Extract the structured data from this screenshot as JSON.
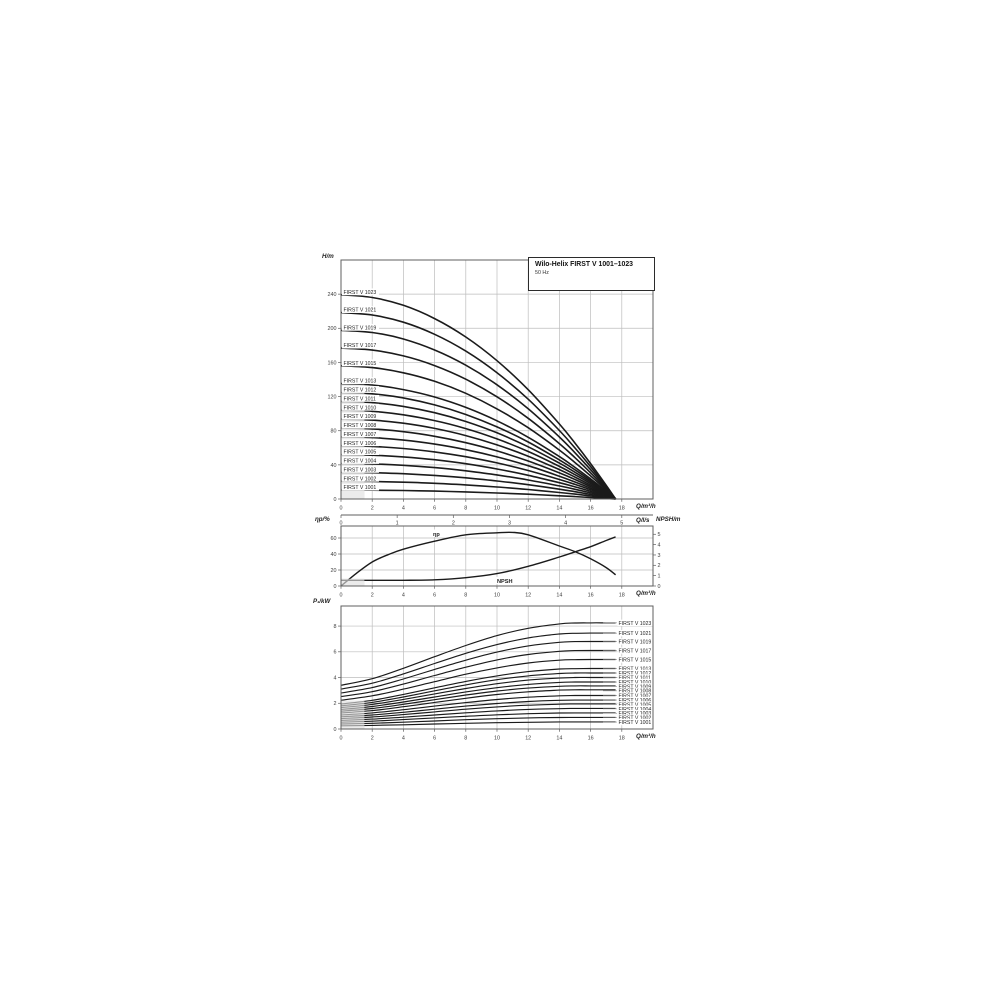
{
  "title_box": {
    "title": "Wilo-Helix FIRST V 1001–1023",
    "subtitle": "50 Hz"
  },
  "units": {
    "head": "H/m",
    "flow_m3h": "Q/m³/h",
    "flow_ls": "Q/l/s",
    "eta": "ηp/%",
    "npsh": "NPSH/m",
    "power": "P₁/kW"
  },
  "colors": {
    "curve": "#1b1b1b",
    "grid": "#bdbdbd",
    "frame": "#5f5f5f",
    "tick_text": "#3c3c3c",
    "leader": "#8c8c8c",
    "wash_under": "#d2d2d2",
    "wash_over": "rgba(255,255,255,0.55)"
  },
  "chart_data": [
    {
      "type": "line",
      "name": "head-vs-flow",
      "ylabel": "H/m",
      "xlabel": "Q/m³/h",
      "x2label": "Q/l/s",
      "xlim": [
        0,
        20
      ],
      "ylim": [
        0,
        280
      ],
      "x_ticks": [
        0,
        2,
        4,
        6,
        8,
        10,
        12,
        14,
        16,
        18
      ],
      "y_ticks": [
        0,
        40,
        80,
        120,
        160,
        200,
        240
      ],
      "x2_ticks": [
        0,
        1,
        2,
        3,
        4,
        5
      ],
      "x2_to_x_factor": 3.6,
      "grid": true,
      "min_flow_region": {
        "q_max": 1.5,
        "y_max": 134
      },
      "q": [
        0,
        2,
        4,
        6,
        8,
        10,
        12,
        14,
        15,
        16,
        17,
        17.6
      ],
      "series": [
        {
          "name": "FIRST V 1023",
          "values": [
            239.2,
            236.1,
            226.9,
            211.4,
            189.8,
            162.0,
            128.0,
            87.9,
            65.5,
            41.5,
            16.0,
            0
          ]
        },
        {
          "name": "FIRST V 1021",
          "values": [
            218.4,
            215.6,
            207.1,
            193.0,
            173.3,
            147.9,
            116.9,
            80.2,
            59.8,
            37.9,
            14.6,
            0
          ]
        },
        {
          "name": "FIRST V 1019",
          "values": [
            197.6,
            195.1,
            187.4,
            174.6,
            156.8,
            133.8,
            105.7,
            72.6,
            54.1,
            34.3,
            13.2,
            0
          ]
        },
        {
          "name": "FIRST V 1017",
          "values": [
            176.8,
            174.5,
            167.7,
            156.3,
            140.3,
            119.7,
            94.6,
            64.9,
            48.4,
            30.7,
            11.8,
            0
          ]
        },
        {
          "name": "FIRST V 1015",
          "values": [
            156.0,
            154.0,
            147.9,
            137.9,
            123.8,
            105.6,
            83.5,
            57.3,
            42.7,
            27.1,
            10.5,
            0
          ]
        },
        {
          "name": "FIRST V 1013",
          "values": [
            135.2,
            133.5,
            128.2,
            119.5,
            107.3,
            91.6,
            72.3,
            49.7,
            37.0,
            23.5,
            9.1,
            0
          ]
        },
        {
          "name": "FIRST V 1012",
          "values": [
            124.8,
            123.2,
            118.4,
            110.3,
            99.0,
            84.5,
            66.8,
            45.8,
            34.2,
            21.7,
            8.4,
            0
          ]
        },
        {
          "name": "FIRST V 1011",
          "values": [
            114.4,
            112.9,
            108.5,
            101.1,
            90.8,
            77.5,
            61.2,
            42.0,
            31.3,
            19.9,
            7.7,
            0
          ]
        },
        {
          "name": "FIRST V 1010",
          "values": [
            104.0,
            102.7,
            98.6,
            91.9,
            82.5,
            70.4,
            55.7,
            38.2,
            28.5,
            18.1,
            7.0,
            0
          ]
        },
        {
          "name": "FIRST V 1009",
          "values": [
            93.6,
            92.4,
            88.8,
            82.7,
            74.3,
            63.4,
            50.1,
            34.4,
            25.6,
            16.2,
            6.3,
            0
          ]
        },
        {
          "name": "FIRST V 1008",
          "values": [
            83.2,
            82.1,
            78.9,
            73.5,
            66.0,
            56.3,
            44.5,
            30.6,
            22.8,
            14.4,
            5.6,
            0
          ]
        },
        {
          "name": "FIRST V 1007",
          "values": [
            72.8,
            71.9,
            69.0,
            64.3,
            57.8,
            49.3,
            39.0,
            26.7,
            19.9,
            12.6,
            4.9,
            0
          ]
        },
        {
          "name": "FIRST V 1006",
          "values": [
            62.4,
            61.6,
            59.2,
            55.2,
            49.5,
            42.3,
            33.4,
            22.9,
            17.1,
            10.8,
            4.2,
            0
          ]
        },
        {
          "name": "FIRST V 1005",
          "values": [
            52.0,
            51.3,
            49.3,
            46.0,
            41.3,
            35.2,
            27.8,
            19.1,
            14.2,
            9.0,
            3.5,
            0
          ]
        },
        {
          "name": "FIRST V 1004",
          "values": [
            41.6,
            41.1,
            39.5,
            36.8,
            33.0,
            28.2,
            22.3,
            15.3,
            11.4,
            7.2,
            2.8,
            0
          ]
        },
        {
          "name": "FIRST V 1003",
          "values": [
            31.2,
            30.8,
            29.6,
            27.6,
            24.8,
            21.1,
            16.7,
            11.5,
            8.5,
            5.4,
            2.1,
            0
          ]
        },
        {
          "name": "FIRST V 1002",
          "values": [
            20.8,
            20.5,
            19.7,
            18.4,
            16.5,
            14.1,
            11.1,
            7.6,
            5.7,
            3.6,
            1.4,
            0
          ]
        },
        {
          "name": "FIRST V 1001",
          "values": [
            10.4,
            10.3,
            9.9,
            9.2,
            8.3,
            7.0,
            5.6,
            3.8,
            2.8,
            1.8,
            0.7,
            0
          ]
        }
      ]
    },
    {
      "type": "line",
      "name": "efficiency-and-npsh",
      "ylabel_left": "ηp/%",
      "ylabel_right": "NPSH/m",
      "xlabel": "Q/m³/h",
      "xlim": [
        0,
        20
      ],
      "ylim_left": [
        0,
        75
      ],
      "ylim_right": [
        0,
        5.8
      ],
      "x_ticks": [
        0,
        2,
        4,
        6,
        8,
        10,
        12,
        14,
        16,
        18
      ],
      "y_ticks_left": [
        0,
        20,
        40,
        60
      ],
      "y_ticks_right": [
        0,
        1,
        2,
        3,
        4,
        5
      ],
      "grid": true,
      "min_flow_region": {
        "q_max": 1.5,
        "y_max_right": 0.7
      },
      "series": [
        {
          "name": "ηp",
          "axis": "left",
          "q": [
            0,
            1,
            2,
            3,
            4,
            6,
            8,
            10,
            11,
            12,
            14,
            15,
            16,
            17,
            17.6
          ],
          "values": [
            0,
            16,
            30,
            39,
            46,
            56,
            64,
            66.5,
            67,
            64,
            50,
            43,
            34,
            23,
            14
          ]
        },
        {
          "name": "NPSH",
          "axis": "right",
          "q": [
            0,
            2,
            4,
            6,
            8,
            10,
            12,
            14,
            15,
            16,
            17,
            17.6
          ],
          "values": [
            0.55,
            0.55,
            0.55,
            0.6,
            0.8,
            1.2,
            1.9,
            2.8,
            3.3,
            3.8,
            4.4,
            4.75
          ]
        }
      ]
    },
    {
      "type": "line",
      "name": "power-vs-flow",
      "ylabel": "P₁/kW",
      "xlabel": "Q/m³/h",
      "xlim": [
        0,
        20
      ],
      "ylim": [
        0,
        9.56
      ],
      "x_ticks": [
        0,
        2,
        4,
        6,
        8,
        10,
        12,
        14,
        16,
        18
      ],
      "y_ticks": [
        0,
        2,
        4,
        6,
        8
      ],
      "grid": true,
      "min_flow_region": {
        "q_max": 1.5,
        "y_max": 2.2
      },
      "q": [
        0,
        2,
        4,
        6,
        8,
        10,
        12,
        14,
        15,
        16,
        17,
        17.6
      ],
      "series": [
        {
          "name": "FIRST V 1023",
          "values": [
            3.4,
            3.91,
            4.72,
            5.62,
            6.49,
            7.26,
            7.83,
            8.17,
            8.24,
            8.25,
            8.25,
            8.25
          ]
        },
        {
          "name": "FIRST V 1021",
          "values": [
            3.1,
            3.56,
            4.28,
            5.09,
            5.88,
            6.56,
            7.08,
            7.38,
            7.44,
            7.45,
            7.45,
            7.45
          ]
        },
        {
          "name": "FIRST V 1019",
          "values": [
            2.8,
            3.22,
            3.89,
            4.63,
            5.35,
            5.98,
            6.46,
            6.74,
            6.79,
            6.8,
            6.8,
            6.8
          ]
        },
        {
          "name": "FIRST V 1017",
          "values": [
            2.52,
            2.9,
            3.49,
            4.16,
            4.8,
            5.37,
            5.79,
            6.04,
            6.09,
            6.1,
            6.1,
            6.1
          ]
        },
        {
          "name": "FIRST V 1015",
          "values": [
            2.24,
            2.58,
            3.1,
            3.68,
            4.26,
            4.75,
            5.13,
            5.35,
            5.39,
            5.4,
            5.4,
            5.4
          ]
        },
        {
          "name": "FIRST V 1013",
          "values": [
            1.94,
            2.23,
            2.69,
            3.2,
            3.7,
            4.13,
            4.46,
            4.66,
            4.69,
            4.7,
            4.7,
            4.7
          ]
        },
        {
          "name": "FIRST V 1012",
          "values": [
            1.8,
            2.07,
            2.49,
            2.97,
            3.43,
            3.83,
            4.13,
            4.31,
            4.35,
            4.35,
            4.35,
            4.35
          ]
        },
        {
          "name": "FIRST V 1011",
          "values": [
            1.66,
            1.91,
            2.3,
            2.73,
            3.15,
            3.52,
            3.8,
            3.96,
            4.0,
            4.0,
            4.0,
            4.0
          ]
        },
        {
          "name": "FIRST V 1010",
          "values": [
            1.52,
            1.75,
            2.1,
            2.49,
            2.88,
            3.21,
            3.47,
            3.62,
            3.65,
            3.65,
            3.65,
            3.65
          ]
        },
        {
          "name": "FIRST V 1009",
          "values": [
            1.38,
            1.59,
            1.92,
            2.28,
            2.64,
            2.95,
            3.18,
            3.32,
            3.35,
            3.35,
            3.35,
            3.35
          ]
        },
        {
          "name": "FIRST V 1008",
          "values": [
            1.24,
            1.43,
            1.73,
            2.07,
            2.39,
            2.68,
            2.89,
            3.02,
            3.05,
            3.05,
            3.05,
            3.05
          ]
        },
        {
          "name": "FIRST V 1007",
          "values": [
            1.09,
            1.25,
            1.5,
            1.78,
            2.05,
            2.29,
            2.47,
            2.58,
            2.6,
            2.6,
            2.6,
            2.6
          ]
        },
        {
          "name": "FIRST V 1006",
          "values": [
            0.95,
            1.09,
            1.3,
            1.54,
            1.78,
            1.98,
            2.14,
            2.23,
            2.25,
            2.25,
            2.25,
            2.25
          ]
        },
        {
          "name": "FIRST V 1005",
          "values": [
            0.81,
            0.93,
            1.12,
            1.33,
            1.54,
            1.72,
            1.85,
            1.93,
            1.95,
            1.95,
            1.95,
            1.95
          ]
        },
        {
          "name": "FIRST V 1004",
          "values": [
            0.67,
            0.77,
            0.92,
            1.09,
            1.26,
            1.41,
            1.52,
            1.58,
            1.6,
            1.6,
            1.6,
            1.6
          ]
        },
        {
          "name": "FIRST V 1003",
          "values": [
            0.53,
            0.61,
            0.73,
            0.86,
            0.99,
            1.1,
            1.19,
            1.24,
            1.25,
            1.25,
            1.25,
            1.25
          ]
        },
        {
          "name": "FIRST V 1002",
          "values": [
            0.39,
            0.44,
            0.53,
            0.62,
            0.72,
            0.8,
            0.86,
            0.89,
            0.9,
            0.9,
            0.9,
            0.9
          ]
        },
        {
          "name": "FIRST V 1001",
          "values": [
            0.25,
            0.28,
            0.33,
            0.39,
            0.44,
            0.49,
            0.52,
            0.55,
            0.55,
            0.55,
            0.55,
            0.55
          ]
        }
      ]
    }
  ]
}
